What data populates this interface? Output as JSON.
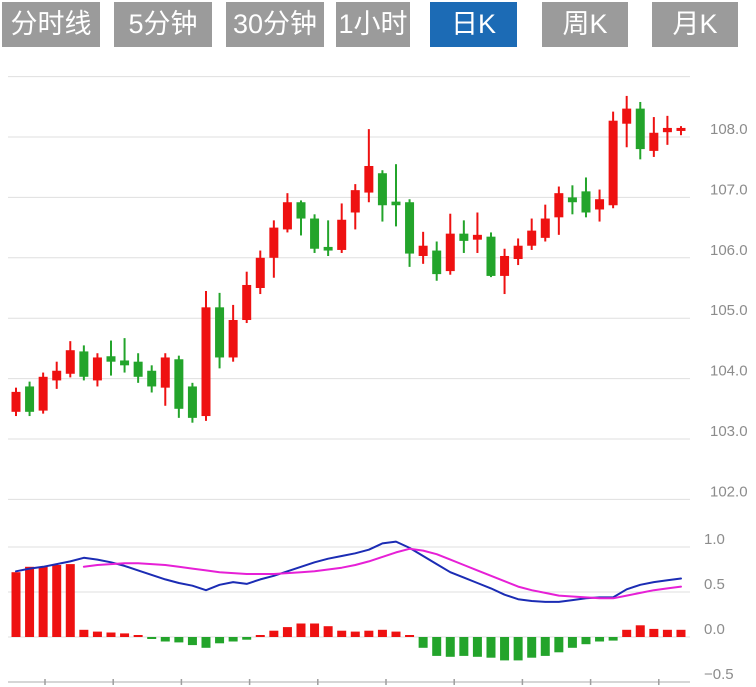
{
  "toolbar": {
    "tabs": [
      {
        "label": "分时线",
        "active": false
      },
      {
        "label": "5分钟",
        "active": false
      },
      {
        "label": "30分钟",
        "active": false
      },
      {
        "label": "1小时",
        "active": false
      },
      {
        "label": "日K",
        "active": true
      },
      {
        "label": "周K",
        "active": false
      },
      {
        "label": "月K",
        "active": false
      }
    ]
  },
  "colors": {
    "up": "#ee1111",
    "down": "#23a42b",
    "dif_line": "#1b2cb4",
    "dea_line": "#e620d6",
    "grid": "#dfdfdf",
    "axis_label": "#8c8c8c",
    "axis_line": "#c9c9c9",
    "axis_tick": "#9e9e9e",
    "tab_bg": "#9b9b9b",
    "tab_active_bg": "#1c6bb5",
    "tab_text": "#ffffff"
  },
  "chart_data": [
    {
      "type": "candlestick",
      "panel": "price",
      "legend_position": "none",
      "grid": true,
      "color_meaning": "red = rise (close >= open), green = fall",
      "y_axis": {
        "tick_labels": [
          "108.0",
          "107.0",
          "106.0",
          "105.0",
          "104.0",
          "103.0",
          "102.0"
        ],
        "tick_values": [
          108,
          107,
          106,
          105,
          104,
          103,
          102
        ],
        "unlabeled_gridlines": [
          109
        ],
        "range": [
          102,
          109
        ]
      },
      "candles": {
        "columns": [
          "open",
          "close",
          "high",
          "low"
        ],
        "rows": [
          [
            103.45,
            103.78,
            103.85,
            103.38
          ],
          [
            103.87,
            103.45,
            103.95,
            103.38
          ],
          [
            103.47,
            104.03,
            104.1,
            103.42
          ],
          [
            103.97,
            104.13,
            104.28,
            103.83
          ],
          [
            104.08,
            104.47,
            104.62,
            104.02
          ],
          [
            104.45,
            104.03,
            104.55,
            103.97
          ],
          [
            103.97,
            104.35,
            104.42,
            103.87
          ],
          [
            104.37,
            104.28,
            104.63,
            104.05
          ],
          [
            104.3,
            104.22,
            104.67,
            104.1
          ],
          [
            104.28,
            104.03,
            104.42,
            103.93
          ],
          [
            104.13,
            103.87,
            104.22,
            103.77
          ],
          [
            103.85,
            104.35,
            104.42,
            103.55
          ],
          [
            104.32,
            103.5,
            104.38,
            103.35
          ],
          [
            103.87,
            103.35,
            103.93,
            103.27
          ],
          [
            103.38,
            105.18,
            105.45,
            103.3
          ],
          [
            105.18,
            104.35,
            105.42,
            104.17
          ],
          [
            104.35,
            104.97,
            105.22,
            104.28
          ],
          [
            104.97,
            105.55,
            105.77,
            104.92
          ],
          [
            105.5,
            106.0,
            106.12,
            105.4
          ],
          [
            106.0,
            106.5,
            106.62,
            105.67
          ],
          [
            106.47,
            106.92,
            107.07,
            106.42
          ],
          [
            106.92,
            106.65,
            106.95,
            106.37
          ],
          [
            106.65,
            106.15,
            106.72,
            106.08
          ],
          [
            106.18,
            106.12,
            106.62,
            106.03
          ],
          [
            106.13,
            106.63,
            106.9,
            106.08
          ],
          [
            106.75,
            107.12,
            107.22,
            106.47
          ],
          [
            107.08,
            107.52,
            108.13,
            106.92
          ],
          [
            107.4,
            106.87,
            107.45,
            106.6
          ],
          [
            106.93,
            106.87,
            107.55,
            106.52
          ],
          [
            106.92,
            106.07,
            106.97,
            105.85
          ],
          [
            106.03,
            106.2,
            106.43,
            105.9
          ],
          [
            106.12,
            105.73,
            106.27,
            105.62
          ],
          [
            105.78,
            106.4,
            106.73,
            105.72
          ],
          [
            106.4,
            106.28,
            106.62,
            106.08
          ],
          [
            106.3,
            106.38,
            106.75,
            106.08
          ],
          [
            106.35,
            105.7,
            106.42,
            105.68
          ],
          [
            105.7,
            106.03,
            106.15,
            105.4
          ],
          [
            105.98,
            106.2,
            106.32,
            105.88
          ],
          [
            106.2,
            106.45,
            106.65,
            106.13
          ],
          [
            106.33,
            106.65,
            106.88,
            106.27
          ],
          [
            106.67,
            107.07,
            107.18,
            106.38
          ],
          [
            107.0,
            106.92,
            107.2,
            106.72
          ],
          [
            107.1,
            106.75,
            107.33,
            106.67
          ],
          [
            106.8,
            106.97,
            107.13,
            106.6
          ],
          [
            106.87,
            108.27,
            108.42,
            106.82
          ],
          [
            108.22,
            108.47,
            108.68,
            107.83
          ],
          [
            108.47,
            107.8,
            108.58,
            107.63
          ],
          [
            107.77,
            108.07,
            108.33,
            107.67
          ],
          [
            108.08,
            108.15,
            108.35,
            107.87
          ],
          [
            108.1,
            108.15,
            108.18,
            108.03
          ]
        ]
      }
    },
    {
      "type": "bar",
      "panel": "macd-indicator",
      "grid": true,
      "y_axis": {
        "tick_labels": [
          "1.0",
          "0.5",
          "0.0",
          "−0.5"
        ],
        "tick_values": [
          1.0,
          0.5,
          0.0,
          -0.5
        ],
        "range": [
          -0.5,
          1.0
        ]
      },
      "x_axis": {
        "tick_count": 10,
        "tick_labels_visible": false
      },
      "series": [
        {
          "name": "MACD-histogram",
          "type": "bar",
          "values": [
            0.72,
            0.78,
            0.78,
            0.8,
            0.81,
            0.08,
            0.06,
            0.05,
            0.04,
            0.02,
            -0.02,
            -0.05,
            -0.06,
            -0.09,
            -0.12,
            -0.07,
            -0.05,
            -0.03,
            0.02,
            0.07,
            0.11,
            0.15,
            0.15,
            0.12,
            0.07,
            0.06,
            0.07,
            0.08,
            0.06,
            0.02,
            -0.12,
            -0.21,
            -0.22,
            -0.21,
            -0.22,
            -0.23,
            -0.26,
            -0.26,
            -0.23,
            -0.21,
            -0.17,
            -0.12,
            -0.08,
            -0.05,
            -0.04,
            0.08,
            0.13,
            0.09,
            0.08,
            0.08
          ]
        },
        {
          "name": "DIF",
          "type": "line",
          "color_key": "dif_line",
          "values": [
            0.73,
            0.76,
            0.78,
            0.81,
            0.84,
            0.88,
            0.86,
            0.83,
            0.79,
            0.74,
            0.69,
            0.64,
            0.6,
            0.57,
            0.52,
            0.58,
            0.61,
            0.59,
            0.64,
            0.68,
            0.73,
            0.78,
            0.83,
            0.87,
            0.9,
            0.93,
            0.97,
            1.04,
            1.06,
            0.99,
            0.9,
            0.81,
            0.72,
            0.66,
            0.6,
            0.54,
            0.47,
            0.42,
            0.4,
            0.39,
            0.39,
            0.41,
            0.43,
            0.44,
            0.44,
            0.53,
            0.58,
            0.61,
            0.63,
            0.65
          ]
        },
        {
          "name": "DEA",
          "type": "line",
          "color_key": "dea_line",
          "values": [
            null,
            null,
            null,
            null,
            null,
            0.78,
            0.8,
            0.81,
            0.82,
            0.82,
            0.81,
            0.8,
            0.78,
            0.76,
            0.74,
            0.72,
            0.71,
            0.7,
            0.7,
            0.7,
            0.71,
            0.72,
            0.73,
            0.75,
            0.77,
            0.8,
            0.84,
            0.89,
            0.94,
            0.98,
            0.96,
            0.92,
            0.86,
            0.8,
            0.74,
            0.68,
            0.62,
            0.56,
            0.52,
            0.49,
            0.46,
            0.45,
            0.44,
            0.43,
            0.43,
            0.46,
            0.49,
            0.52,
            0.54,
            0.56
          ]
        }
      ]
    }
  ]
}
